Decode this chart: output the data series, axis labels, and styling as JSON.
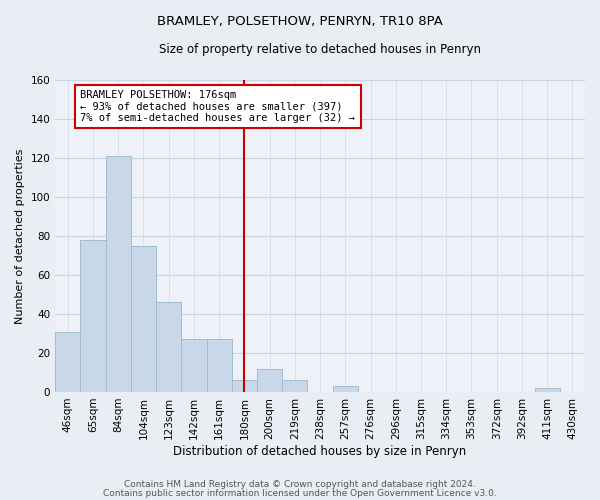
{
  "title": "BRAMLEY, POLSETHOW, PENRYN, TR10 8PA",
  "subtitle": "Size of property relative to detached houses in Penryn",
  "xlabel": "Distribution of detached houses by size in Penryn",
  "ylabel": "Number of detached properties",
  "bin_labels": [
    "46sqm",
    "65sqm",
    "84sqm",
    "104sqm",
    "123sqm",
    "142sqm",
    "161sqm",
    "180sqm",
    "200sqm",
    "219sqm",
    "238sqm",
    "257sqm",
    "276sqm",
    "296sqm",
    "315sqm",
    "334sqm",
    "353sqm",
    "372sqm",
    "392sqm",
    "411sqm",
    "430sqm"
  ],
  "bar_heights": [
    31,
    78,
    121,
    75,
    46,
    27,
    27,
    6,
    12,
    6,
    0,
    3,
    0,
    0,
    0,
    0,
    0,
    0,
    0,
    2,
    0
  ],
  "bar_color": "#c8d8e8",
  "bar_edge_color": "#a0bcd0",
  "vline_x_index": 7,
  "vline_color": "#cc0000",
  "annotation_line1": "BRAMLEY POLSETHOW: 176sqm",
  "annotation_line2": "← 93% of detached houses are smaller (397)",
  "annotation_line3": "7% of semi-detached houses are larger (32) →",
  "annotation_box_color": "#ffffff",
  "annotation_box_edge": "#cc0000",
  "ylim": [
    0,
    160
  ],
  "yticks": [
    0,
    20,
    40,
    60,
    80,
    100,
    120,
    140,
    160
  ],
  "footnote1": "Contains HM Land Registry data © Crown copyright and database right 2024.",
  "footnote2": "Contains public sector information licensed under the Open Government Licence v3.0.",
  "bg_color": "#e8eef4",
  "plot_bg_color": "#eef2f8",
  "grid_color": "#c8d4e0",
  "title_fontsize": 9.5,
  "subtitle_fontsize": 8.5,
  "xlabel_fontsize": 8.5,
  "ylabel_fontsize": 8,
  "tick_fontsize": 7.5,
  "footnote_fontsize": 6.5
}
